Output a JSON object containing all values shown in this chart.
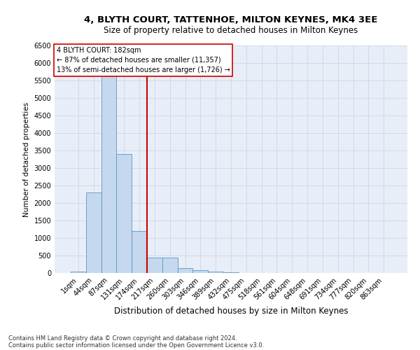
{
  "title1": "4, BLYTH COURT, TATTENHOE, MILTON KEYNES, MK4 3EE",
  "title2": "Size of property relative to detached houses in Milton Keynes",
  "xlabel": "Distribution of detached houses by size in Milton Keynes",
  "ylabel": "Number of detached properties",
  "footer1": "Contains HM Land Registry data © Crown copyright and database right 2024.",
  "footer2": "Contains public sector information licensed under the Open Government Licence v3.0.",
  "annotation_line1": "4 BLYTH COURT: 182sqm",
  "annotation_line2": "← 87% of detached houses are smaller (11,357)",
  "annotation_line3": "13% of semi-detached houses are larger (1,726) →",
  "bar_labels": [
    "1sqm",
    "44sqm",
    "87sqm",
    "131sqm",
    "174sqm",
    "217sqm",
    "260sqm",
    "303sqm",
    "346sqm",
    "389sqm",
    "432sqm",
    "475sqm",
    "518sqm",
    "561sqm",
    "604sqm",
    "648sqm",
    "691sqm",
    "734sqm",
    "777sqm",
    "820sqm",
    "863sqm"
  ],
  "bar_values": [
    50,
    2300,
    5900,
    3400,
    1200,
    450,
    450,
    150,
    75,
    50,
    20,
    5,
    2,
    1,
    0,
    0,
    0,
    0,
    0,
    0,
    0
  ],
  "bar_color": "#c5d8ed",
  "bar_edge_color": "#5a96c8",
  "grid_color": "#cdd6e8",
  "background_color": "#e8eef7",
  "vline_x": 4.5,
  "vline_color": "#cc0000",
  "ylim": [
    0,
    6500
  ],
  "yticks": [
    0,
    500,
    1000,
    1500,
    2000,
    2500,
    3000,
    3500,
    4000,
    4500,
    5000,
    5500,
    6000,
    6500
  ],
  "title1_fontsize": 9.5,
  "title2_fontsize": 8.5,
  "xlabel_fontsize": 8.5,
  "ylabel_fontsize": 7.5,
  "tick_fontsize": 7,
  "annotation_fontsize": 7,
  "footer_fontsize": 6
}
